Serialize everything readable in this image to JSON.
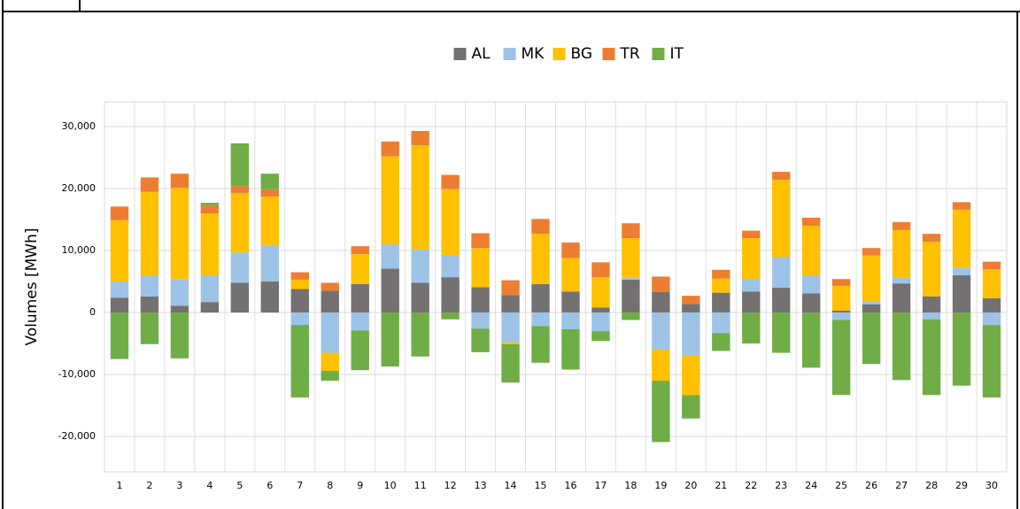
{
  "chart_data": {
    "type": "bar",
    "stacked": true,
    "y_label": "Volumes [MWh]",
    "categories": [
      "1",
      "2",
      "3",
      "4",
      "5",
      "6",
      "7",
      "8",
      "9",
      "10",
      "11",
      "12",
      "13",
      "14",
      "15",
      "16",
      "17",
      "18",
      "19",
      "20",
      "21",
      "22",
      "23",
      "24",
      "25",
      "26",
      "27",
      "28",
      "29",
      "30"
    ],
    "series": [
      {
        "name": "AL",
        "color": "#767171",
        "values": [
          2400,
          2600,
          1100,
          1700,
          4800,
          5000,
          3800,
          3500,
          4600,
          7100,
          4800,
          5700,
          4100,
          2800,
          4600,
          3400,
          800,
          5300,
          3300,
          1400,
          3200,
          3400,
          4000,
          3100,
          300,
          1300,
          4700,
          2600,
          6000,
          2300
        ]
      },
      {
        "name": "MK",
        "color": "#9dc3e6",
        "values": [
          2600,
          3400,
          4300,
          4300,
          4900,
          5900,
          -2000,
          -6500,
          -2900,
          3900,
          5400,
          3600,
          -2600,
          -4800,
          -2200,
          -2700,
          -3000,
          300,
          -6000,
          -7000,
          -3300,
          1900,
          5000,
          2900,
          -1200,
          500,
          900,
          -1100,
          1200,
          -2000
        ]
      },
      {
        "name": "BG",
        "color": "#ffc000",
        "values": [
          9900,
          13500,
          14700,
          10000,
          9600,
          7800,
          1500,
          -2900,
          4800,
          14200,
          16800,
          10600,
          6300,
          -300,
          8100,
          5400,
          4900,
          6400,
          -5000,
          -6300,
          2300,
          6700,
          12400,
          8000,
          4000,
          7400,
          7700,
          8800,
          9400,
          4700
        ]
      },
      {
        "name": "TR",
        "color": "#ed7d31",
        "values": [
          2200,
          2300,
          2300,
          1300,
          1100,
          1200,
          1200,
          1300,
          1300,
          2400,
          2300,
          2300,
          2400,
          2400,
          2400,
          2500,
          2400,
          2400,
          2500,
          1300,
          1400,
          1200,
          1300,
          1300,
          1100,
          1200,
          1300,
          1300,
          1200,
          1200
        ]
      },
      {
        "name": "IT",
        "color": "#70ad47",
        "values": [
          -7500,
          -5100,
          -7400,
          400,
          6900,
          2500,
          -11700,
          -1600,
          -6400,
          -8700,
          -7100,
          -1100,
          -3800,
          -6200,
          -5900,
          -6500,
          -1600,
          -1200,
          -9900,
          -3800,
          -2900,
          -5000,
          -6500,
          -8900,
          -12100,
          -8300,
          -10900,
          -12200,
          -11800,
          -11700
        ]
      }
    ],
    "ylim": [
      -25700,
      34000
    ],
    "yticks": [
      {
        "value": -20000,
        "label": "-20,000"
      },
      {
        "value": -10000,
        "label": "-10,000"
      },
      0,
      {
        "value": 10000,
        "label": "10,000"
      },
      {
        "value": 20000,
        "label": "20,000"
      },
      {
        "value": 30000,
        "label": "30,000"
      }
    ],
    "grid": true,
    "legend": "top"
  }
}
